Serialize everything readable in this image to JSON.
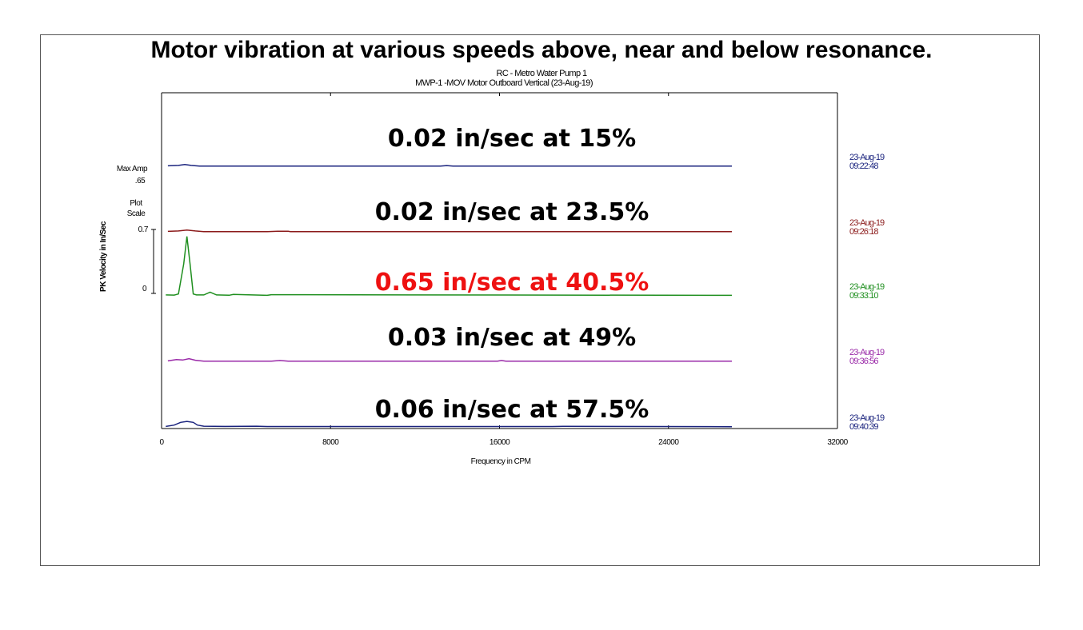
{
  "header": {
    "title": "Motor vibration at various speeds above, near and below resonance.",
    "subtitle_line1": "RC  - Metro Water Pump 1",
    "subtitle_line2": "MWP-1    -MOV  Motor Outboard Vertical   (23-Aug-19)"
  },
  "side_labels": {
    "max_amp_label": "Max Amp",
    "max_amp_value": ".65",
    "plot_scale_label_1": "Plot",
    "plot_scale_label_2": "Scale",
    "scale_top": "0.7",
    "scale_zero": "0"
  },
  "chart_data": {
    "type": "line",
    "xlabel": "Frequency in CPM",
    "ylabel": "PK Velocity in In/Sec",
    "xlim": [
      0,
      32000
    ],
    "x_ticks": [
      "0",
      "8000",
      "16000",
      "24000",
      "32000"
    ],
    "plot_scale": 0.7,
    "series": [
      {
        "timestamp_date": "23-Aug-19",
        "timestamp_time": "09:22:48",
        "color": "#1a237e",
        "annotation": "0.02 in/sec at 15%",
        "annotation_color": "#000000",
        "x": [
          300,
          800,
          1100,
          1400,
          1800,
          2500,
          13200,
          13500,
          13800,
          27000
        ],
        "y": [
          0.005,
          0.01,
          0.02,
          0.01,
          0.003,
          0.002,
          0.002,
          0.008,
          0.002,
          0.002
        ]
      },
      {
        "timestamp_date": "23-Aug-19",
        "timestamp_time": "09:26:18",
        "color": "#8b1a1a",
        "annotation": "0.02 in/sec at 23.5%",
        "annotation_color": "#000000",
        "x": [
          300,
          800,
          1200,
          1600,
          2000,
          5000,
          5500,
          6000,
          6100,
          27000
        ],
        "y": [
          0.005,
          0.01,
          0.02,
          0.01,
          0.003,
          0.003,
          0.007,
          0.006,
          0.003,
          0.003
        ]
      },
      {
        "timestamp_date": "23-Aug-19",
        "timestamp_time": "09:33:10",
        "color": "#1f8f1f",
        "annotation": "0.65 in/sec at 40.5%",
        "annotation_color": "#ee1111",
        "x": [
          200,
          600,
          800,
          1050,
          1200,
          1350,
          1500,
          1650,
          2000,
          2300,
          2600,
          3200,
          3400,
          5000,
          5200,
          27000
        ],
        "y": [
          0.01,
          0.008,
          0.02,
          0.35,
          0.65,
          0.35,
          0.02,
          0.01,
          0.01,
          0.04,
          0.01,
          0.006,
          0.015,
          0.005,
          0.012,
          0.005
        ]
      },
      {
        "timestamp_date": "23-Aug-19",
        "timestamp_time": "09:36:56",
        "color": "#9a2aa8",
        "annotation": "0.03 in/sec at 49%",
        "annotation_color": "#000000",
        "x": [
          300,
          700,
          1000,
          1300,
          1600,
          2000,
          5200,
          5600,
          6000,
          15900,
          16100,
          16300,
          27000
        ],
        "y": [
          0.005,
          0.02,
          0.015,
          0.03,
          0.012,
          0.003,
          0.003,
          0.01,
          0.003,
          0.003,
          0.01,
          0.003,
          0.003
        ]
      },
      {
        "timestamp_date": "23-Aug-19",
        "timestamp_time": "09:40:39",
        "color": "#1a237e",
        "annotation": "0.06 in/sec at 57.5%",
        "annotation_color": "#000000",
        "x": [
          200,
          600,
          900,
          1200,
          1500,
          1700,
          2000,
          3000,
          4500,
          5000,
          18500,
          19000,
          27000
        ],
        "y": [
          0.005,
          0.02,
          0.05,
          0.06,
          0.05,
          0.02,
          0.008,
          0.005,
          0.008,
          0.004,
          0.004,
          0.006,
          0.003
        ]
      }
    ]
  }
}
